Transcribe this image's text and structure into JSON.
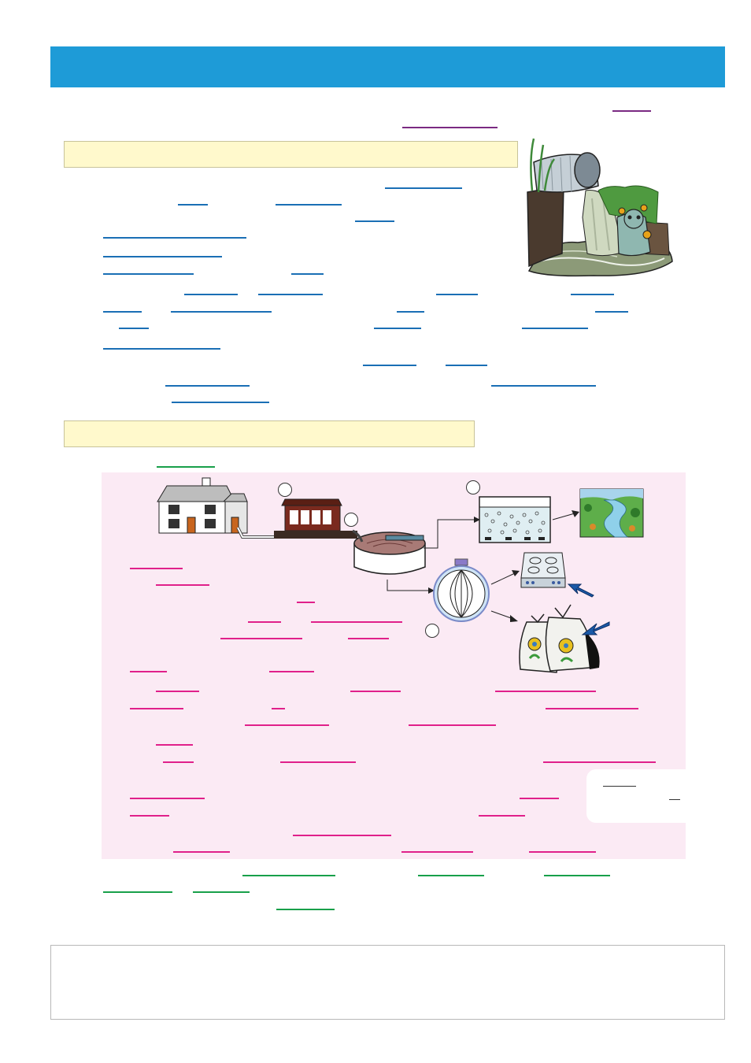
{
  "colors": {
    "title_banner": "#1e9bd7",
    "heading_box": "#fff9cc",
    "panel": "#fbeaf4",
    "blank_purple": "#7a2a82",
    "blank_blue": "#1a6fb5",
    "blank_green": "#18a04a",
    "blank_pink": "#e0208a"
  },
  "illustrations": {
    "outfall": "sewage-outfall-pipe-illustration",
    "house": "house-icon",
    "screening": "screening-building-icon",
    "settling": "settling-tank-icon",
    "aeration": "aeration-tank-icon",
    "river": "river-landscape-icon",
    "digester": "digester-sphere-icon",
    "cooker": "gas-cooker-icon",
    "fertiliser": "fertiliser-bags-icon",
    "arrow": "blue-arrow-icon"
  }
}
